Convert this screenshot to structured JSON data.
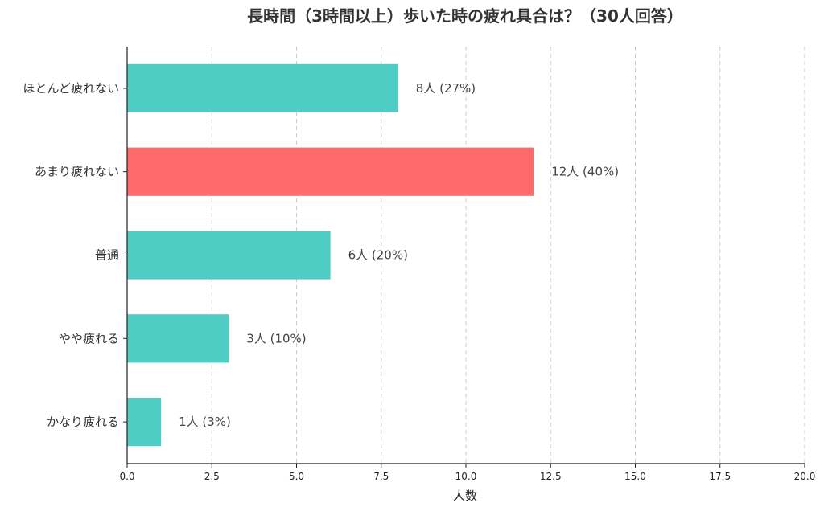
{
  "chart_data": {
    "type": "bar",
    "orientation": "horizontal",
    "title": "長時間（3時間以上）歩いた時の疲れ具合は？（30人回答）",
    "xlabel": "人数",
    "ylabel": "",
    "xlim": [
      0,
      20
    ],
    "xticks": [
      0,
      2.5,
      5,
      7.5,
      10,
      12.5,
      15,
      17.5,
      20
    ],
    "xtick_labels": [
      "0.0",
      "2.5",
      "5.0",
      "7.5",
      "10.0",
      "12.5",
      "15.0",
      "17.5",
      "20.0"
    ],
    "grid": "x",
    "categories": [
      "ほとんど疲れない",
      "あまり疲れない",
      "普通",
      "やや疲れる",
      "かなり疲れる"
    ],
    "values": [
      8,
      12,
      6,
      3,
      1
    ],
    "data_labels": [
      "8人 (27%)",
      "12人 (40%)",
      "6人 (20%)",
      "3人 (10%)",
      "1人 (3%)"
    ],
    "colors": [
      "#4ecdc4",
      "#ff6b6b",
      "#4ecdc4",
      "#4ecdc4",
      "#4ecdc4"
    ]
  }
}
